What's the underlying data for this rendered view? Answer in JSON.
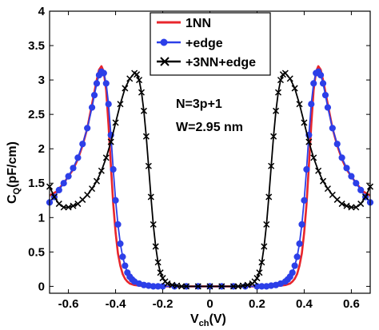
{
  "chart_data": {
    "type": "line",
    "xlabel": "V",
    "xlabel_sub": "ch",
    "xlabel_unit": "(V)",
    "ylabel": "C",
    "ylabel_sub": "Q",
    "ylabel_unit": "(pF/cm)",
    "xlim": [
      -0.68,
      0.68
    ],
    "ylim": [
      -0.1,
      4
    ],
    "x_ticks": [
      -0.6,
      -0.4,
      -0.2,
      0,
      0.2,
      0.4,
      0.6
    ],
    "x_tick_labels": [
      "-0.6",
      "-0.4",
      "-0.2",
      "0",
      "0.2",
      "0.4",
      "0.6"
    ],
    "y_ticks": [
      0,
      0.5,
      1,
      1.5,
      2,
      2.5,
      3,
      3.5,
      4
    ],
    "y_tick_labels": [
      "0",
      "0.5",
      "1",
      "1.5",
      "2",
      "2.5",
      "3",
      "3.5",
      "4"
    ],
    "annotations": [
      "N=3p+1",
      "W=2.95 nm"
    ],
    "legend_position": "top-center",
    "series": [
      {
        "name": "1NN",
        "color": "#e8262c",
        "marker": "none",
        "x": [
          -0.68,
          -0.65,
          -0.62,
          -0.6,
          -0.58,
          -0.56,
          -0.54,
          -0.52,
          -0.5,
          -0.48,
          -0.47,
          -0.46,
          -0.45,
          -0.44,
          -0.43,
          -0.42,
          -0.41,
          -0.4,
          -0.39,
          -0.38,
          -0.37,
          -0.36,
          -0.35,
          -0.34,
          -0.32,
          -0.3,
          -0.25,
          -0.2,
          0,
          0.2,
          0.25,
          0.3,
          0.32,
          0.34,
          0.35,
          0.36,
          0.37,
          0.38,
          0.39,
          0.4,
          0.41,
          0.42,
          0.43,
          0.44,
          0.45,
          0.46,
          0.47,
          0.48,
          0.5,
          0.52,
          0.54,
          0.56,
          0.58,
          0.6,
          0.62,
          0.65,
          0.68
        ],
        "y": [
          1.32,
          1.38,
          1.5,
          1.6,
          1.7,
          1.85,
          2.05,
          2.3,
          2.65,
          3.0,
          3.15,
          3.2,
          3.12,
          2.85,
          2.35,
          1.75,
          1.2,
          0.78,
          0.48,
          0.3,
          0.18,
          0.11,
          0.07,
          0.04,
          0.02,
          0.01,
          0.0,
          0.0,
          0.0,
          0.0,
          0.0,
          0.01,
          0.02,
          0.04,
          0.07,
          0.11,
          0.18,
          0.3,
          0.48,
          0.78,
          1.2,
          1.75,
          2.35,
          2.85,
          3.12,
          3.2,
          3.15,
          3.0,
          2.65,
          2.3,
          2.05,
          1.85,
          1.7,
          1.6,
          1.5,
          1.38,
          1.32
        ]
      },
      {
        "name": "+edge",
        "color": "#2c3fe8",
        "marker": "circle",
        "x": [
          -0.68,
          -0.66,
          -0.64,
          -0.62,
          -0.6,
          -0.58,
          -0.56,
          -0.54,
          -0.52,
          -0.5,
          -0.49,
          -0.48,
          -0.47,
          -0.46,
          -0.45,
          -0.44,
          -0.43,
          -0.42,
          -0.41,
          -0.4,
          -0.39,
          -0.38,
          -0.37,
          -0.36,
          -0.35,
          -0.34,
          -0.33,
          -0.32,
          -0.3,
          -0.28,
          -0.26,
          -0.24,
          -0.22,
          -0.2,
          -0.15,
          -0.1,
          -0.05,
          0,
          0.05,
          0.1,
          0.15,
          0.2,
          0.22,
          0.24,
          0.26,
          0.28,
          0.3,
          0.32,
          0.33,
          0.34,
          0.35,
          0.36,
          0.37,
          0.38,
          0.39,
          0.4,
          0.41,
          0.42,
          0.43,
          0.44,
          0.45,
          0.46,
          0.47,
          0.48,
          0.49,
          0.5,
          0.52,
          0.54,
          0.56,
          0.58,
          0.6,
          0.62,
          0.64,
          0.66,
          0.68
        ],
        "y": [
          1.22,
          1.3,
          1.4,
          1.5,
          1.6,
          1.72,
          1.87,
          2.07,
          2.3,
          2.6,
          2.78,
          2.95,
          3.07,
          3.12,
          3.1,
          2.95,
          2.65,
          2.2,
          1.7,
          1.25,
          0.9,
          0.62,
          0.43,
          0.3,
          0.2,
          0.14,
          0.1,
          0.07,
          0.04,
          0.02,
          0.01,
          0.0,
          0.0,
          0.0,
          0.0,
          0.0,
          0.0,
          0.0,
          0.0,
          0.0,
          0.0,
          0.0,
          0.0,
          0.0,
          0.01,
          0.02,
          0.04,
          0.07,
          0.1,
          0.14,
          0.2,
          0.3,
          0.43,
          0.62,
          0.9,
          1.25,
          1.7,
          2.2,
          2.65,
          2.95,
          3.1,
          3.12,
          3.07,
          2.95,
          2.78,
          2.6,
          2.3,
          2.07,
          1.87,
          1.72,
          1.6,
          1.5,
          1.4,
          1.3,
          1.22
        ]
      },
      {
        "name": "+3NN+edge",
        "color": "#000000",
        "marker": "x",
        "x": [
          -0.68,
          -0.66,
          -0.64,
          -0.62,
          -0.6,
          -0.58,
          -0.56,
          -0.54,
          -0.52,
          -0.5,
          -0.48,
          -0.46,
          -0.44,
          -0.42,
          -0.4,
          -0.38,
          -0.36,
          -0.34,
          -0.32,
          -0.31,
          -0.3,
          -0.29,
          -0.28,
          -0.27,
          -0.26,
          -0.25,
          -0.24,
          -0.23,
          -0.22,
          -0.21,
          -0.2,
          -0.19,
          -0.18,
          -0.16,
          -0.14,
          -0.12,
          -0.1,
          -0.05,
          0,
          0.05,
          0.1,
          0.12,
          0.14,
          0.16,
          0.18,
          0.19,
          0.2,
          0.21,
          0.22,
          0.23,
          0.24,
          0.25,
          0.26,
          0.27,
          0.28,
          0.29,
          0.3,
          0.31,
          0.32,
          0.34,
          0.36,
          0.38,
          0.4,
          0.42,
          0.44,
          0.46,
          0.48,
          0.5,
          0.52,
          0.54,
          0.56,
          0.58,
          0.6,
          0.62,
          0.64,
          0.66,
          0.68
        ],
        "y": [
          1.45,
          1.3,
          1.2,
          1.15,
          1.15,
          1.17,
          1.2,
          1.26,
          1.33,
          1.42,
          1.53,
          1.68,
          1.87,
          2.1,
          2.38,
          2.65,
          2.88,
          3.02,
          3.1,
          3.08,
          3.0,
          2.82,
          2.55,
          2.18,
          1.75,
          1.3,
          0.9,
          0.58,
          0.35,
          0.2,
          0.12,
          0.07,
          0.04,
          0.02,
          0.01,
          0.0,
          0.0,
          0.0,
          0.0,
          0.0,
          0.0,
          0.0,
          0.01,
          0.02,
          0.04,
          0.07,
          0.12,
          0.2,
          0.35,
          0.58,
          0.9,
          1.3,
          1.75,
          2.18,
          2.55,
          2.82,
          3.0,
          3.08,
          3.1,
          3.02,
          2.88,
          2.65,
          2.38,
          2.1,
          1.87,
          1.68,
          1.53,
          1.42,
          1.33,
          1.26,
          1.2,
          1.17,
          1.15,
          1.15,
          1.2,
          1.3,
          1.45
        ]
      }
    ]
  }
}
